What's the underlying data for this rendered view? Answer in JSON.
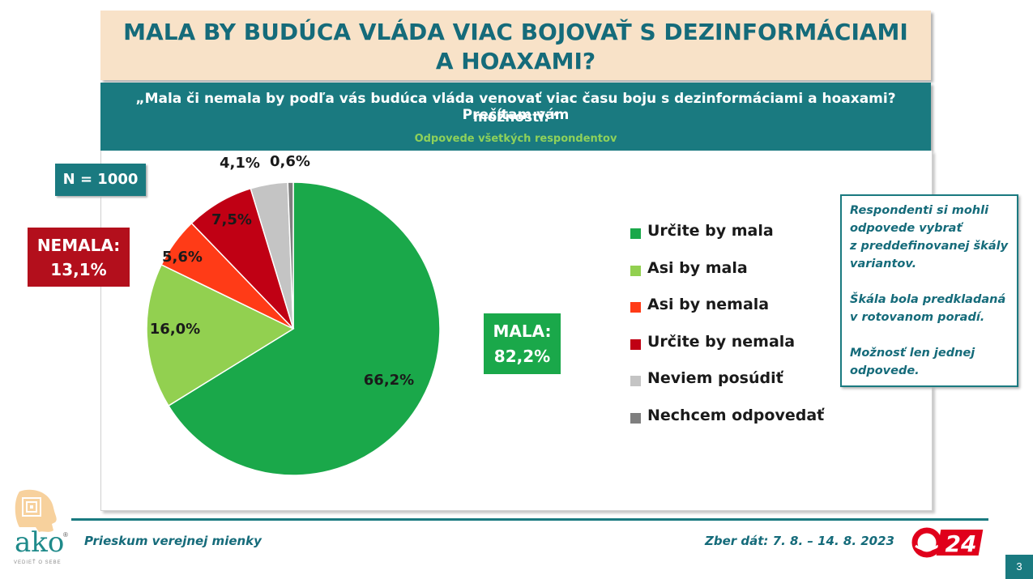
{
  "title": {
    "line1": "MALA BY BUDÚCA VLÁDA VIAC BOJOVAŤ S DEZINFORMÁCIAMI",
    "line2": "A HOAXAMI?"
  },
  "question": {
    "line1": "„Mala či nemala by podľa vás budúca vláda venovať viac času boju s dezinformáciami a hoaxami? Prečítam vám",
    "line2": "možnosti:“",
    "subtitle": "Odpovede všetkých respondentov"
  },
  "sample": "N = 1000",
  "summary": {
    "nemala_label": "NEMALA:",
    "nemala_value": "13,1%",
    "mala_label": "MALA:",
    "mala_value": "82,2%"
  },
  "note": {
    "p1": "Respondenti si mohli\nodpovede vybrať\nz preddefinovanej škály\nvariantov.",
    "p2": "Škála bola predkladaná\nv rotovanom poradí.",
    "p3": "Možnosť len jednej\nodpovede."
  },
  "footer": {
    "left": "Prieskum verejnej mienky",
    "right": "Zber dát: 7. 8. – 14. 8. 2023",
    "page": "3",
    "logo_text": "ako",
    "logo_sub": "VEDIEŤ O SEBE",
    "logo_reg": "®",
    "tv_number": "24"
  },
  "chart_data": {
    "type": "pie",
    "start_angle_deg": 0,
    "direction": "clockwise",
    "slices": [
      {
        "name": "Určite by mala",
        "value": 66.2,
        "label": "66,2%",
        "color": "#1aa84a"
      },
      {
        "name": "Asi by mala",
        "value": 16.0,
        "label": "16,0%",
        "color": "#92d050"
      },
      {
        "name": "Asi by nemala",
        "value": 5.6,
        "label": "5,6%",
        "color": "#ff3b17"
      },
      {
        "name": "Určite by nemala",
        "value": 7.5,
        "label": "7,5%",
        "color": "#c00014"
      },
      {
        "name": "Neviem posúdiť",
        "value": 4.1,
        "label": "4,1%",
        "color": "#c4c4c4"
      },
      {
        "name": "Nechcem odpovedať",
        "value": 0.6,
        "label": "0,6%",
        "color": "#7f7f7f"
      }
    ],
    "legend_position": "right"
  }
}
